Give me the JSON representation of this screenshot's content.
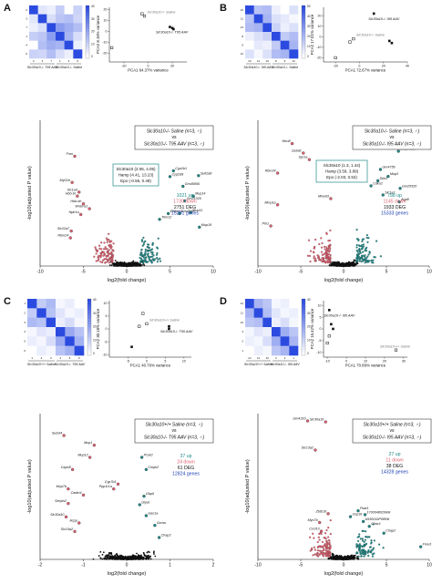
{
  "panels": [
    {
      "label": "A",
      "heatmap": {
        "group_labels": [
          "Slc30a10-/- T95 AAV",
          "Slc30a10-/- Saline"
        ],
        "sample_ids": [
          "2",
          "3",
          "7",
          "1",
          "4",
          "6"
        ],
        "colorbar_ticks": [
          "40",
          "30",
          "20",
          "10",
          "0"
        ],
        "cells": [
          [
            0,
            38,
            40,
            32,
            44,
            33
          ],
          [
            38,
            0,
            36,
            30,
            28,
            34
          ],
          [
            40,
            36,
            0,
            20,
            24,
            28
          ],
          [
            32,
            30,
            20,
            0,
            26,
            36
          ],
          [
            44,
            28,
            24,
            26,
            0,
            40
          ],
          [
            33,
            34,
            28,
            36,
            40,
            0
          ]
        ]
      },
      "pca": {
        "xlabel": "PCA1 64.37% variance",
        "ylabel": "PCA2 8.16% variance",
        "xticks": [
          "-20",
          "0",
          "20"
        ],
        "yticks": [
          "20",
          "10",
          "0",
          "-10",
          "-20"
        ],
        "xlim": [
          -32,
          32
        ],
        "ylim": [
          -28,
          22
        ],
        "legend_open": "Slc30a10-/- Saline",
        "legend_filled": "Slc30a10-/- T95 AAV",
        "points_open": [
          [
            -30,
            -15
          ],
          [
            -5,
            16
          ],
          [
            -3,
            14
          ]
        ],
        "points_filled": [
          [
            18,
            4
          ],
          [
            20,
            3
          ],
          [
            21,
            2
          ]
        ]
      },
      "volcano": {
        "title_line1": "Slc30a10-/- Saline (n=3, ♂)",
        "title_vs": "vs",
        "title_line2": "Slc30a10-/- T95 AAV (n=3, ♂)",
        "callout": [
          "Slc30a10 (2.06, 4.05)",
          "Hamp (4.41, 13.23)",
          "Epo (-0.56, 0.49)"
        ],
        "stats": {
          "up": "1021 up",
          "down": "1730 down",
          "deg": "2751 DEG",
          "genes": "15261 genes"
        },
        "xlabel": "log2(fold change)",
        "ylabel": "-log10(adjusted P value)",
        "xticks": [
          "-10",
          "-5",
          "0",
          "5",
          "10"
        ],
        "xlim": [
          -10,
          10
        ],
        "ylim": [
          0,
          15
        ],
        "genes": [
          {
            "name": "Hsd3b5",
            "x": 7.5,
            "y": 13.2,
            "c": "up"
          },
          {
            "name": "Sult2a8",
            "x": 8.3,
            "y": 9.3,
            "c": "up"
          },
          {
            "name": "Cyp1b1",
            "x": 5.4,
            "y": 9.8,
            "c": "up"
          },
          {
            "name": "Cyp2d9",
            "x": 5.0,
            "y": 9.2,
            "c": "up"
          },
          {
            "name": "Gm45956",
            "x": 6.5,
            "y": 8.2,
            "c": "up"
          },
          {
            "name": "Mup14",
            "x": 7.7,
            "y": 7.2,
            "c": "up"
          },
          {
            "name": "Gm21320",
            "x": 6.7,
            "y": 6.7,
            "c": "up"
          },
          {
            "name": "Elfdsm4",
            "x": 4.8,
            "y": 5.4,
            "c": "up"
          },
          {
            "name": "Gm4841",
            "x": 6.1,
            "y": 5.4,
            "c": "up"
          },
          {
            "name": "Mup11",
            "x": 7.4,
            "y": 5.5,
            "c": "up"
          },
          {
            "name": "Trim12",
            "x": 3.8,
            "y": 4.8,
            "c": "up"
          },
          {
            "name": "Mup19",
            "x": 8.4,
            "y": 4.0,
            "c": "up"
          },
          {
            "name": "Fmo",
            "x": -6.0,
            "y": 11.3,
            "c": "down"
          },
          {
            "name": "Myl11e",
            "x": -6.3,
            "y": 8.6,
            "c": "down"
          },
          {
            "name": "Slc1a4",
            "x": -5.5,
            "y": 7.6,
            "c": "down"
          },
          {
            "name": "Hbb-bt",
            "x": -5.7,
            "y": 7.2,
            "c": "down"
          },
          {
            "name": "Hbb-bh",
            "x": -5.0,
            "y": 6.4,
            "c": "down"
          },
          {
            "name": "Wnbl-a1",
            "x": -4.3,
            "y": 5.9,
            "c": "down"
          },
          {
            "name": "Nptr1a",
            "x": -5.3,
            "y": 5.3,
            "c": "down"
          },
          {
            "name": "Slc22a7",
            "x": -6.4,
            "y": 3.6,
            "c": "down"
          },
          {
            "name": "Rbm24",
            "x": -6.5,
            "y": 2.9,
            "c": "down"
          }
        ]
      }
    },
    {
      "label": "B",
      "heatmap": {
        "group_labels": [
          "Slc30a10-/- I95 AAV",
          "Slc30a10-/- Saline"
        ],
        "sample_ids": [
          "10",
          "11",
          "13",
          "8",
          "9",
          "12"
        ],
        "colorbar_ticks": [
          "50",
          "40",
          "30",
          "20",
          "10",
          "0"
        ],
        "cells": [
          [
            0,
            32,
            30,
            44,
            48,
            40
          ],
          [
            32,
            0,
            28,
            40,
            42,
            46
          ],
          [
            30,
            28,
            0,
            36,
            44,
            40
          ],
          [
            44,
            40,
            36,
            0,
            34,
            30
          ],
          [
            48,
            42,
            44,
            34,
            0,
            28
          ],
          [
            40,
            46,
            40,
            30,
            28,
            0
          ]
        ]
      },
      "pca": {
        "xlabel": "PCA1 72.67% variance",
        "ylabel": "PCA2 17.01% variance",
        "xticks": [
          "-20",
          "0",
          "20",
          "40"
        ],
        "yticks": [
          "20",
          "10",
          "0",
          "-10",
          "-20"
        ],
        "xlim": [
          -30,
          40
        ],
        "ylim": [
          -24,
          28
        ],
        "legend_open": "Slc30a10-/- Saline",
        "legend_filled": "Slc30a10-/- I95 AAV",
        "points_open": [
          [
            -20,
            -20
          ],
          [
            -8,
            -5
          ],
          [
            -5,
            -2
          ]
        ],
        "points_filled": [
          [
            12,
            22
          ],
          [
            25,
            -4
          ],
          [
            27,
            -6
          ]
        ]
      },
      "volcano": {
        "title_line1": "Slc30a10-/- Saline (n=3, ♂)",
        "title_vs": "vs",
        "title_line2": "Slc30a10-/- I95 AAV (n=3, ♂)",
        "callout": [
          "Slc30a10 (1.3, 1.44)",
          "Hamp (3.59, 3.89)",
          "Epo (-2.03, 0.52)"
        ],
        "stats": {
          "up": "788 up",
          "down": "1145 down",
          "deg": "1933 DEG",
          "genes": "15333 genes"
        },
        "xlabel": "log2(fold change)",
        "ylabel": "-log10(adjusted P value)",
        "xticks": [
          "-10",
          "-5",
          "0",
          "5",
          "10"
        ],
        "xlim": [
          -10,
          10
        ],
        "ylim": [
          0,
          40
        ],
        "genes": [
          {
            "name": "Thrsp",
            "x": 7.5,
            "y": 36.0,
            "c": "up"
          },
          {
            "name": "Serpina12",
            "x": 6.4,
            "y": 31.5,
            "c": "up"
          },
          {
            "name": "Gm4756",
            "x": 4.3,
            "y": 26.5,
            "c": "up"
          },
          {
            "name": "Mup3",
            "x": 5.2,
            "y": 24.6,
            "c": "up"
          },
          {
            "name": "Dkk3",
            "x": 4.0,
            "y": 23.4,
            "c": "up"
          },
          {
            "name": "Gm20520",
            "x": 6.6,
            "y": 21.3,
            "c": "up"
          },
          {
            "name": "Slc1a1",
            "x": 4.6,
            "y": 19.5,
            "c": "up"
          },
          {
            "name": "Aqp8",
            "x": 6.5,
            "y": 17.6,
            "c": "up"
          },
          {
            "name": "Cdkn2",
            "x": 3.2,
            "y": 22.0,
            "c": "up"
          },
          {
            "name": "Mcu8",
            "x": -6.0,
            "y": 33.6,
            "c": "down"
          },
          {
            "name": "Gstat1",
            "x": -4.7,
            "y": 31.0,
            "c": "down"
          },
          {
            "name": "Spr1a",
            "x": -4.0,
            "y": 29.2,
            "c": "down"
          },
          {
            "name": "Rbm24",
            "x": -7.7,
            "y": 25.5,
            "c": "down"
          },
          {
            "name": "Mmp1a",
            "x": -7.7,
            "y": 16.8,
            "c": "down"
          },
          {
            "name": "Mixed3",
            "x": -1.5,
            "y": 18.5,
            "c": "down"
          },
          {
            "name": "Ptn1",
            "x": -8.5,
            "y": 11.0,
            "c": "down"
          }
        ]
      }
    },
    {
      "label": "C",
      "heatmap": {
        "group_labels": [
          "Slc30a10+/+ Saline",
          "Slc30a10-/- T95 AAV"
        ],
        "sample_ids": [
          "1",
          "2",
          "3",
          "4",
          "5",
          "6"
        ],
        "colorbar_ticks": [
          "40",
          "30",
          "20",
          "10",
          "0"
        ],
        "cells": [
          [
            0,
            30,
            26,
            40,
            38,
            42
          ],
          [
            30,
            0,
            28,
            36,
            40,
            38
          ],
          [
            26,
            28,
            0,
            38,
            34,
            40
          ],
          [
            40,
            36,
            38,
            0,
            22,
            28
          ],
          [
            38,
            40,
            34,
            22,
            0,
            24
          ],
          [
            42,
            38,
            40,
            28,
            24,
            0
          ]
        ]
      },
      "pca": {
        "xlabel": "PCA1 40.76% variance",
        "ylabel": "PCA2 30.18% variance",
        "xticks": [
          "-5",
          "0",
          "5",
          "10"
        ],
        "yticks": [
          "10",
          "5",
          "0",
          "-5",
          "-10"
        ],
        "xlim": [
          -10,
          12
        ],
        "ylim": [
          -11,
          11
        ],
        "legend_open": "Slc30a10+/+ Saline",
        "legend_filled": "Slc30a10-/- T95 AAV",
        "points_open": [
          [
            -1,
            6
          ],
          [
            -2,
            1
          ],
          [
            0,
            2
          ]
        ],
        "points_filled": [
          [
            6,
            1
          ],
          [
            6,
            0
          ],
          [
            -4,
            -7
          ]
        ]
      },
      "volcano": {
        "title_line1": "Slc30a10+/+ Saline (n=3, ♂)",
        "title_vs": "vs",
        "title_line2": "Slc30a10-/- T95 AAV (n=3, ♂)",
        "callout": [],
        "stats": {
          "up": "37 up",
          "down": "24 down",
          "deg": "61 DEG",
          "genes": "12824 genes"
        },
        "xlabel": "log2(fold change)",
        "ylabel": "-log10(adjusted P value)",
        "xticks": [
          "-2",
          "-1",
          "0",
          "1",
          "2"
        ],
        "xlim": [
          -2,
          2
        ],
        "ylim": [
          0,
          12
        ],
        "genes": [
          {
            "name": "Sulzd4",
            "x": -1.45,
            "y": 10.2,
            "c": "down"
          },
          {
            "name": "Mup1",
            "x": -0.75,
            "y": 9.4,
            "c": "down"
          },
          {
            "name": "Mup12",
            "x": -0.85,
            "y": 8.4,
            "c": "down"
          },
          {
            "name": "Capn8",
            "x": -1.25,
            "y": 7.4,
            "c": "down"
          },
          {
            "name": "Mup7b",
            "x": -1.35,
            "y": 5.8,
            "c": "down"
          },
          {
            "name": "Cadm4",
            "x": -1.0,
            "y": 5.3,
            "c": "down"
          },
          {
            "name": "Serpin2",
            "x": -1.35,
            "y": 4.6,
            "c": "down"
          },
          {
            "name": "Slc30a10",
            "x": -1.4,
            "y": 3.5,
            "c": "down"
          },
          {
            "name": "Acpp",
            "x": -1.1,
            "y": 3.0,
            "c": "down"
          },
          {
            "name": "Slc15a2",
            "x": -1.2,
            "y": 2.3,
            "c": "down"
          },
          {
            "name": "Cyp7b1",
            "x": -0.2,
            "y": 6.2,
            "c": "down"
          },
          {
            "name": "Ppp1r1a",
            "x": -0.3,
            "y": 5.8,
            "c": "down"
          },
          {
            "name": "Pcsk2",
            "x": 0.35,
            "y": 8.4,
            "c": "up"
          },
          {
            "name": "Cmpk2",
            "x": 0.45,
            "y": 7.4,
            "c": "up"
          },
          {
            "name": "Gbp6",
            "x": 0.4,
            "y": 5.2,
            "c": "up"
          },
          {
            "name": "Glyat",
            "x": 0.3,
            "y": 4.5,
            "c": "up"
          },
          {
            "name": "Gas1a",
            "x": 0.45,
            "y": 3.6,
            "c": "up"
          },
          {
            "name": "Gzma",
            "x": 0.65,
            "y": 2.8,
            "c": "up"
          },
          {
            "name": "Chap2",
            "x": 0.75,
            "y": 1.8,
            "c": "up"
          }
        ]
      }
    },
    {
      "label": "D",
      "heatmap": {
        "group_labels": [
          "Slc30a10+/+ Saline",
          "Slc30a10-/- I95 AAV"
        ],
        "sample_ids": [
          "12",
          "11",
          "10",
          "3",
          "2",
          "1"
        ],
        "colorbar_ticks": [
          "40",
          "30",
          "20",
          "10",
          "0"
        ],
        "cells": [
          [
            0,
            26,
            30,
            42,
            40,
            44
          ],
          [
            26,
            0,
            28,
            38,
            42,
            40
          ],
          [
            30,
            28,
            0,
            40,
            36,
            42
          ],
          [
            42,
            38,
            40,
            0,
            24,
            30
          ],
          [
            40,
            42,
            36,
            24,
            0,
            26
          ],
          [
            44,
            40,
            42,
            30,
            26,
            0
          ]
        ]
      },
      "pca": {
        "xlabel": "PCA1 70.89% variance",
        "ylabel": "PCA2 16.42% variance",
        "xticks": [
          "-10",
          "0",
          "10",
          "20",
          "30"
        ],
        "yticks": [
          "10",
          "5",
          "0",
          "-5",
          "-10"
        ],
        "xlim": [
          -12,
          32
        ],
        "ylim": [
          -12,
          12
        ],
        "legend_open": "Slc30a10+/+ Saline",
        "legend_filled": "Slc30a10-/- I95 AAV",
        "points_open": [
          [
            -10,
            -6
          ],
          [
            -9,
            -3
          ],
          [
            26,
            -9
          ]
        ],
        "points_filled": [
          [
            -9,
            8
          ],
          [
            -8,
            2
          ],
          [
            -7,
            0
          ]
        ]
      },
      "volcano": {
        "title_line1": "Slc30a10+/+ Saline (n=3, ♂)",
        "title_vs": "vs",
        "title_line2": "Slc30a10-/- I95 AAV (n=3, ♂)",
        "callout": [],
        "stats": {
          "up": "27 up",
          "down": "11 down",
          "deg": "38 DEG",
          "genes": "14328 genes"
        },
        "xlabel": "log2(fold change)",
        "ylabel": "-log10(adjusted P value)",
        "xticks": [
          "-10",
          "-5",
          "0",
          "5",
          "10"
        ],
        "xlim": [
          -10,
          10
        ],
        "ylim": [
          0,
          30
        ],
        "genes": [
          {
            "name": "Gm4316",
            "x": -4.2,
            "y": 28.5,
            "c": "down"
          },
          {
            "name": "Slc30a10",
            "x": -2.1,
            "y": 28.3,
            "c": "down"
          },
          {
            "name": "Slc13a2",
            "x": -3.3,
            "y": 22.5,
            "c": "down"
          },
          {
            "name": "Zbtb16",
            "x": -1.8,
            "y": 9.4,
            "c": "down"
          },
          {
            "name": "Myo7b",
            "x": -2.8,
            "y": 7.6,
            "c": "down"
          },
          {
            "name": "Cxcl13",
            "x": -2.6,
            "y": 5.8,
            "c": "down"
          },
          {
            "name": "Usp18",
            "x": 0.8,
            "y": 8.8,
            "c": "up"
          },
          {
            "name": "Psat1",
            "x": 1.7,
            "y": 10.0,
            "c": "up"
          },
          {
            "name": "1700048020Rik",
            "x": 2.5,
            "y": 9.2,
            "c": "up"
          },
          {
            "name": "A530016P08Rik",
            "x": 2.3,
            "y": 7.8,
            "c": "up"
          },
          {
            "name": "Chac1",
            "x": 3.0,
            "y": 6.8,
            "c": "up"
          },
          {
            "name": "Chap2",
            "x": 4.7,
            "y": 5.4,
            "c": "up"
          },
          {
            "name": "Fmo3",
            "x": 9.0,
            "y": 2.6,
            "c": "up"
          }
        ]
      }
    }
  ],
  "colors": {
    "up": "#1f8a88",
    "down": "#e06070",
    "ns": "#111111",
    "heat_high": "#2b4be0",
    "heat_low": "#ffffff"
  }
}
